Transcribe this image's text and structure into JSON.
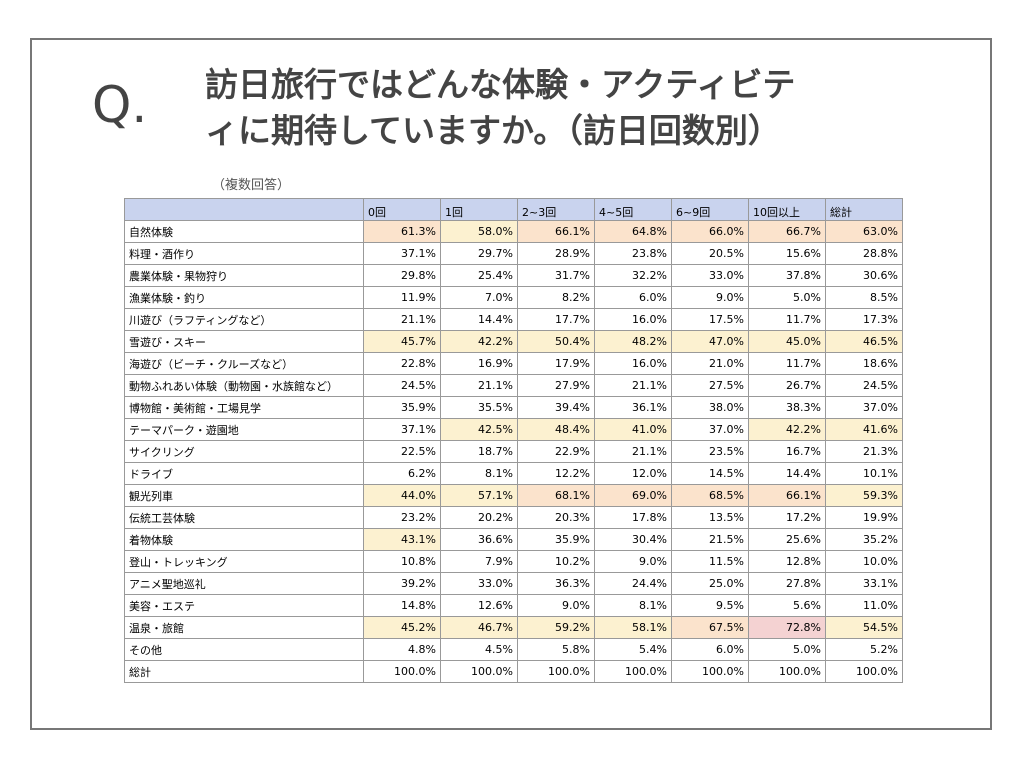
{
  "header": {
    "mark": "Q.",
    "title_lines": [
      "訪日旅行ではどんな体験・アクティビテ",
      "ィに期待していますか。（訪日回数別）"
    ],
    "note": "（複数回答）"
  },
  "table": {
    "columns": [
      "",
      "0回",
      "1回",
      "2~3回",
      "4~5回",
      "6~9回",
      "10回以上",
      "総計"
    ],
    "header_color": "#c9d3ee",
    "heatmap": [
      {
        "min": 40,
        "color": "#fcf1d0"
      },
      {
        "min": 60,
        "color": "#fbe3cc"
      },
      {
        "min": 70,
        "color": "#f4d2d2"
      }
    ],
    "rows": [
      [
        "自然体験",
        "61.3%",
        "58.0%",
        "66.1%",
        "64.8%",
        "66.0%",
        "66.7%",
        "63.0%"
      ],
      [
        "料理・酒作り",
        "37.1%",
        "29.7%",
        "28.9%",
        "23.8%",
        "20.5%",
        "15.6%",
        "28.8%"
      ],
      [
        "農業体験・果物狩り",
        "29.8%",
        "25.4%",
        "31.7%",
        "32.2%",
        "33.0%",
        "37.8%",
        "30.6%"
      ],
      [
        "漁業体験・釣り",
        "11.9%",
        "7.0%",
        "8.2%",
        "6.0%",
        "9.0%",
        "5.0%",
        "8.5%"
      ],
      [
        "川遊び（ラフティングなど）",
        "21.1%",
        "14.4%",
        "17.7%",
        "16.0%",
        "17.5%",
        "11.7%",
        "17.3%"
      ],
      [
        "雪遊び・スキー",
        "45.7%",
        "42.2%",
        "50.4%",
        "48.2%",
        "47.0%",
        "45.0%",
        "46.5%"
      ],
      [
        "海遊び（ビーチ・クルーズなど）",
        "22.8%",
        "16.9%",
        "17.9%",
        "16.0%",
        "21.0%",
        "11.7%",
        "18.6%"
      ],
      [
        "動物ふれあい体験（動物園・水族館など）",
        "24.5%",
        "21.1%",
        "27.9%",
        "21.1%",
        "27.5%",
        "26.7%",
        "24.5%"
      ],
      [
        "博物館・美術館・工場見学",
        "35.9%",
        "35.5%",
        "39.4%",
        "36.1%",
        "38.0%",
        "38.3%",
        "37.0%"
      ],
      [
        "テーマパーク・遊園地",
        "37.1%",
        "42.5%",
        "48.4%",
        "41.0%",
        "37.0%",
        "42.2%",
        "41.6%"
      ],
      [
        "サイクリング",
        "22.5%",
        "18.7%",
        "22.9%",
        "21.1%",
        "23.5%",
        "16.7%",
        "21.3%"
      ],
      [
        "ドライブ",
        "6.2%",
        "8.1%",
        "12.2%",
        "12.0%",
        "14.5%",
        "14.4%",
        "10.1%"
      ],
      [
        "観光列車",
        "44.0%",
        "57.1%",
        "68.1%",
        "69.0%",
        "68.5%",
        "66.1%",
        "59.3%"
      ],
      [
        "伝統工芸体験",
        "23.2%",
        "20.2%",
        "20.3%",
        "17.8%",
        "13.5%",
        "17.2%",
        "19.9%"
      ],
      [
        "着物体験",
        "43.1%",
        "36.6%",
        "35.9%",
        "30.4%",
        "21.5%",
        "25.6%",
        "35.2%"
      ],
      [
        "登山・トレッキング",
        "10.8%",
        "7.9%",
        "10.2%",
        "9.0%",
        "11.5%",
        "12.8%",
        "10.0%"
      ],
      [
        "アニメ聖地巡礼",
        "39.2%",
        "33.0%",
        "36.3%",
        "24.4%",
        "25.0%",
        "27.8%",
        "33.1%"
      ],
      [
        "美容・エステ",
        "14.8%",
        "12.6%",
        "9.0%",
        "8.1%",
        "9.5%",
        "5.6%",
        "11.0%"
      ],
      [
        "温泉・旅館",
        "45.2%",
        "46.7%",
        "59.2%",
        "58.1%",
        "67.5%",
        "72.8%",
        "54.5%"
      ],
      [
        "その他",
        "4.8%",
        "4.5%",
        "5.8%",
        "5.4%",
        "6.0%",
        "5.0%",
        "5.2%"
      ],
      [
        "総計",
        "100.0%",
        "100.0%",
        "100.0%",
        "100.0%",
        "100.0%",
        "100.0%",
        "100.0%"
      ]
    ]
  }
}
